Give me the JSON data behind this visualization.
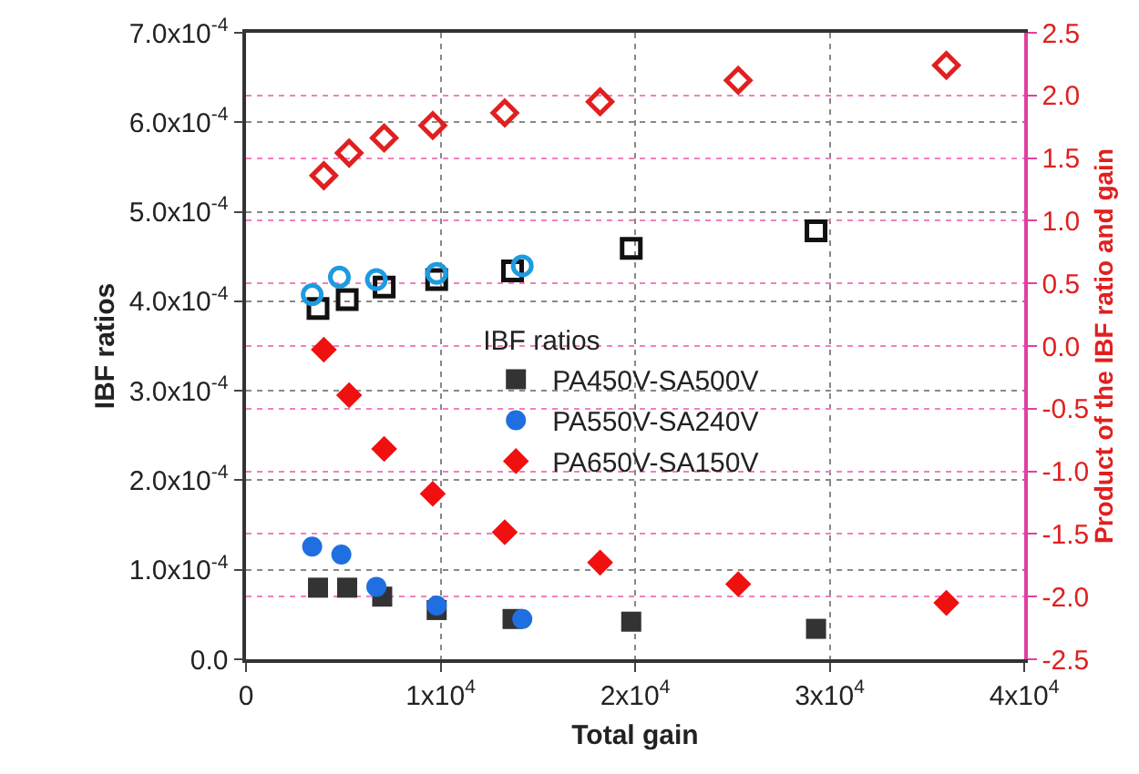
{
  "chart_data": {
    "type": "scatter",
    "xlabel": "Total gain",
    "ylabel": "IBF ratios",
    "y2label": "Product of the IBF ratio and gain",
    "legend_title": "IBF ratios",
    "legend": "center",
    "grid": true,
    "xlim": [
      0,
      40000
    ],
    "xticks": [
      0,
      {
        "value": 10000,
        "label": "1x10$^{4}$"
      },
      {
        "value": 20000,
        "label": "2x10$^{4}$"
      },
      {
        "value": 30000,
        "label": "3x10$^{4}$"
      },
      {
        "value": 40000,
        "label": "4x10$^{4}$"
      }
    ],
    "ylim": [
      0,
      0.0007
    ],
    "yticks": [
      {
        "value": 0,
        "label": "0.0"
      },
      {
        "value": 0.0001,
        "label": "1.0x10$^{-4}$"
      },
      {
        "value": 0.0002,
        "label": "2.0x10$^{-4}$"
      },
      {
        "value": 0.0003,
        "label": "3.0x10$^{-4}$"
      },
      {
        "value": 0.0004,
        "label": "4.0x10$^{-4}$"
      },
      {
        "value": 0.0005,
        "label": "5.0x10$^{-4}$"
      },
      {
        "value": 0.0006,
        "label": "6.0x10$^{-4}$"
      },
      {
        "value": 0.0007,
        "label": "7.0x10$^{-4}$"
      }
    ],
    "y2lim": [
      -2.5,
      2.5
    ],
    "y2ticks": [
      -2.5,
      {
        "value": -2,
        "label": "-2.0"
      },
      -1.5,
      {
        "value": -1,
        "label": "-1.0"
      },
      -0.5,
      {
        "value": 0,
        "label": "0.0"
      },
      0.5,
      {
        "value": 1,
        "label": "1.0"
      },
      1.5,
      {
        "value": 2,
        "label": "2.0"
      },
      2.5
    ],
    "series": [
      {
        "name": "PA450V-SA500V",
        "color": "#333333",
        "marker": "square",
        "x": [
          3700,
          5200,
          7000,
          9800,
          13700,
          19800,
          29300
        ],
        "values": [
          8e-05,
          8e-05,
          7e-05,
          5.5e-05,
          4.5e-05,
          4.2e-05,
          3.4e-05
        ]
      },
      {
        "name": "PA550V-SA240V",
        "color": "#1f6fe0",
        "marker": "circle",
        "x": [
          3400,
          4900,
          6700,
          9800,
          14200
        ],
        "values": [
          0.000126,
          0.000117,
          8.1e-05,
          6e-05,
          4.5e-05
        ]
      },
      {
        "name": "PA650V-SA150V",
        "color": "#f01010",
        "marker": "diamond",
        "x": [
          4000,
          5300,
          7100,
          9600,
          13300,
          18200,
          25300,
          36000
        ],
        "values": [
          0.000346,
          0.000295,
          0.000235,
          0.000185,
          0.000142,
          0.000108,
          8.4e-05,
          6.3e-05
        ]
      },
      {
        "color": "#111111",
        "marker": "square",
        "axis": "y2",
        "x": [
          3700,
          5200,
          7100,
          9800,
          13700,
          19800,
          29300
        ],
        "values": [
          0.3,
          0.37,
          0.47,
          0.53,
          0.6,
          0.78,
          0.92
        ]
      },
      {
        "color": "#1e9be0",
        "marker": "circle",
        "axis": "y2",
        "x": [
          3400,
          4800,
          6700,
          9800,
          14200
        ],
        "values": [
          0.41,
          0.55,
          0.53,
          0.58,
          0.64
        ]
      },
      {
        "color": "#e02020",
        "marker": "diamond",
        "axis": "y2",
        "x": [
          4000,
          5300,
          7100,
          9600,
          13300,
          18200,
          25300,
          36000
        ],
        "values": [
          1.36,
          1.54,
          1.66,
          1.76,
          1.86,
          1.95,
          2.12,
          2.24
        ]
      }
    ]
  }
}
